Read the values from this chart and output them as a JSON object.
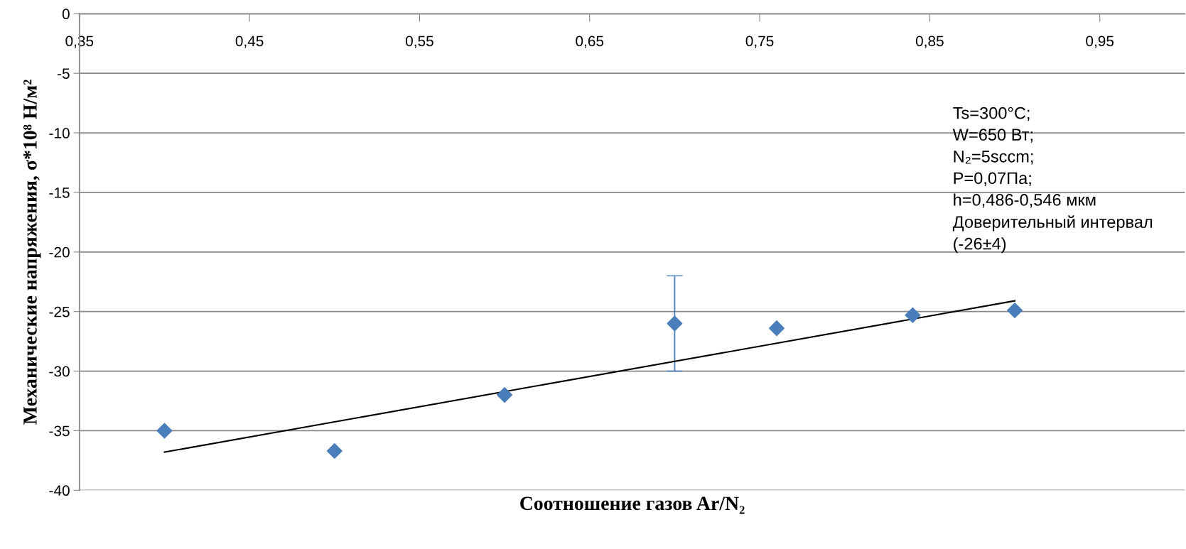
{
  "chart_data": {
    "type": "scatter",
    "xlabel": "Соотношение газов Ar/N₂",
    "ylabel": "Механические напряжения, σ*10⁸ Н/м²",
    "annotations": [
      "Ts=300°C;\nW=650 Вт;\nN₂=5sccm;\nP=0,07Па;\nh=0,486-0,546 мкм\nДоверительный интервал\n(-26±4)"
    ],
    "series": [
      {
        "color": "#4a7ebb",
        "marker": "diamond",
        "x": [
          0.4,
          0.5,
          0.6,
          0.7,
          0.76,
          0.84,
          0.9
        ],
        "values": [
          -35,
          -36.7,
          -32,
          -26,
          -26.4,
          -25.3,
          -24.9
        ],
        "errors": [
          null,
          null,
          null,
          4,
          null,
          null,
          null
        ]
      },
      {
        "type": "line",
        "color": "#000000",
        "line_style": "solid",
        "x": [
          0.4,
          0.9
        ],
        "values": [
          -36.8,
          -24.1
        ]
      }
    ],
    "xlim": [
      0.35,
      1.0
    ],
    "xticks": [
      {
        "value": 0.35,
        "label": "0,35"
      },
      {
        "value": 0.45,
        "label": "0,45"
      },
      {
        "value": 0.55,
        "label": "0,55"
      },
      {
        "value": 0.65,
        "label": "0,65"
      },
      {
        "value": 0.75,
        "label": "0,75"
      },
      {
        "value": 0.85,
        "label": "0,85"
      },
      {
        "value": 0.95,
        "label": "0,95"
      }
    ],
    "ylim": [
      -40,
      0
    ],
    "yticks": [
      -40,
      -35,
      -30,
      -25,
      -20,
      -15,
      -10,
      -5,
      0
    ],
    "grid": "y",
    "legend": false
  }
}
